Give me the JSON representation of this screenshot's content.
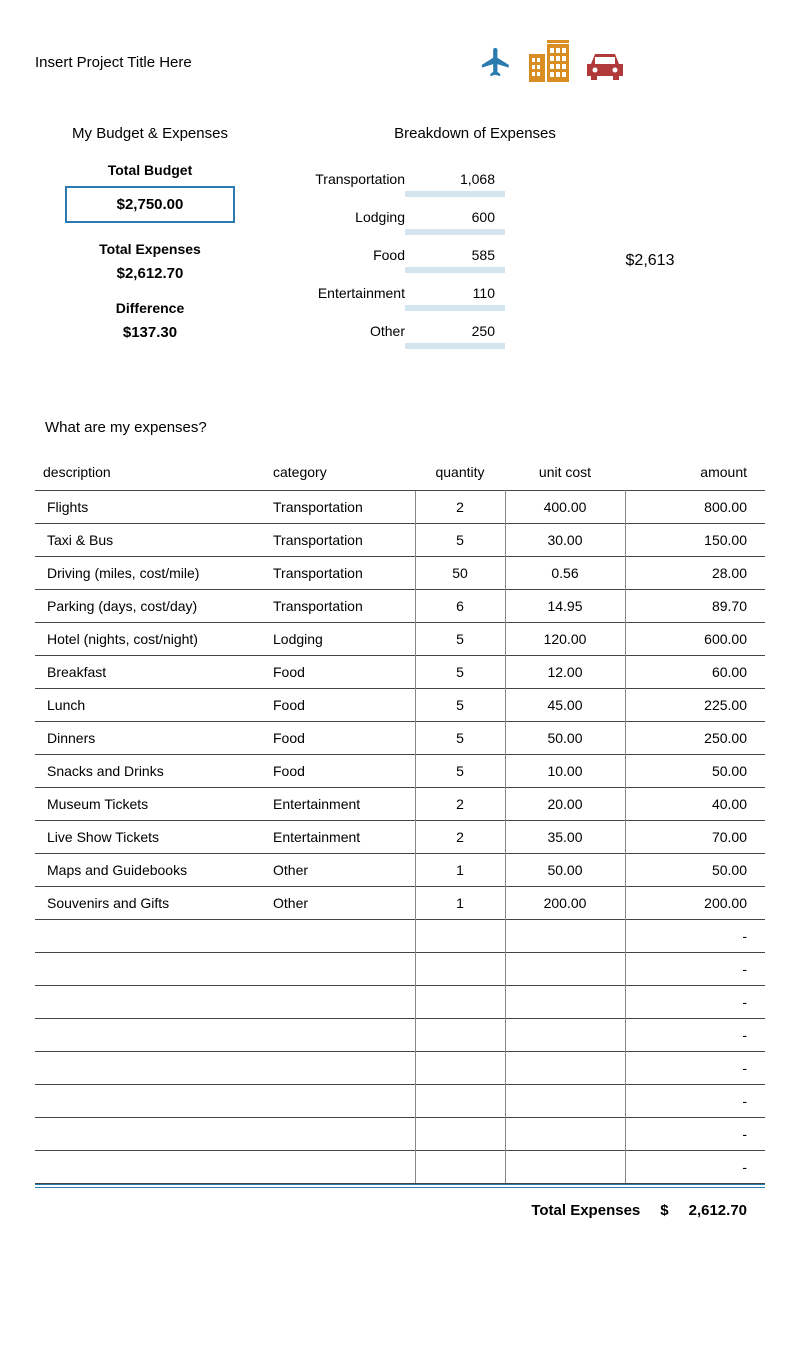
{
  "header": {
    "project_title": "Insert Project Title Here",
    "section_budget": "My Budget & Expenses",
    "section_breakdown": "Breakdown of Expenses"
  },
  "icons": {
    "plane_color": "#2b7ab0",
    "building_color": "#d98e24",
    "car_color": "#b03a3a"
  },
  "budget": {
    "total_budget_label": "Total Budget",
    "total_budget_value": "$2,750.00",
    "total_expenses_label": "Total Expenses",
    "total_expenses_value": "$2,612.70",
    "difference_label": "Difference",
    "difference_value": "$137.30"
  },
  "breakdown": {
    "bar_color": "#d5e5ef",
    "max_value": 1068,
    "items": [
      {
        "label": "Transportation",
        "value": "1,068",
        "num": 1068
      },
      {
        "label": "Lodging",
        "value": "600",
        "num": 600
      },
      {
        "label": "Food",
        "value": "585",
        "num": 585
      },
      {
        "label": "Entertainment",
        "value": "110",
        "num": 110
      },
      {
        "label": "Other",
        "value": "250",
        "num": 250
      }
    ],
    "total": "$2,613"
  },
  "expenses": {
    "question": "What are my expenses?",
    "columns": {
      "description": "description",
      "category": "category",
      "quantity": "quantity",
      "unit_cost": "unit cost",
      "amount": "amount"
    },
    "rows": [
      {
        "description": "Flights",
        "category": "Transportation",
        "quantity": "2",
        "unit_cost": "400.00",
        "amount": "800.00"
      },
      {
        "description": "Taxi & Bus",
        "category": "Transportation",
        "quantity": "5",
        "unit_cost": "30.00",
        "amount": "150.00"
      },
      {
        "description": "Driving (miles, cost/mile)",
        "category": "Transportation",
        "quantity": "50",
        "unit_cost": "0.56",
        "amount": "28.00"
      },
      {
        "description": "Parking (days, cost/day)",
        "category": "Transportation",
        "quantity": "6",
        "unit_cost": "14.95",
        "amount": "89.70"
      },
      {
        "description": "Hotel (nights, cost/night)",
        "category": "Lodging",
        "quantity": "5",
        "unit_cost": "120.00",
        "amount": "600.00"
      },
      {
        "description": "Breakfast",
        "category": "Food",
        "quantity": "5",
        "unit_cost": "12.00",
        "amount": "60.00"
      },
      {
        "description": "Lunch",
        "category": "Food",
        "quantity": "5",
        "unit_cost": "45.00",
        "amount": "225.00"
      },
      {
        "description": "Dinners",
        "category": "Food",
        "quantity": "5",
        "unit_cost": "50.00",
        "amount": "250.00"
      },
      {
        "description": "Snacks and Drinks",
        "category": "Food",
        "quantity": "5",
        "unit_cost": "10.00",
        "amount": "50.00"
      },
      {
        "description": "Museum Tickets",
        "category": "Entertainment",
        "quantity": "2",
        "unit_cost": "20.00",
        "amount": "40.00"
      },
      {
        "description": "Live Show Tickets",
        "category": "Entertainment",
        "quantity": "2",
        "unit_cost": "35.00",
        "amount": "70.00"
      },
      {
        "description": "Maps and Guidebooks",
        "category": "Other",
        "quantity": "1",
        "unit_cost": "50.00",
        "amount": "50.00"
      },
      {
        "description": "Souvenirs and Gifts",
        "category": "Other",
        "quantity": "1",
        "unit_cost": "200.00",
        "amount": "200.00"
      },
      {
        "description": "",
        "category": "",
        "quantity": "",
        "unit_cost": "",
        "amount": "-"
      },
      {
        "description": "",
        "category": "",
        "quantity": "",
        "unit_cost": "",
        "amount": "-"
      },
      {
        "description": "",
        "category": "",
        "quantity": "",
        "unit_cost": "",
        "amount": "-"
      },
      {
        "description": "",
        "category": "",
        "quantity": "",
        "unit_cost": "",
        "amount": "-"
      },
      {
        "description": "",
        "category": "",
        "quantity": "",
        "unit_cost": "",
        "amount": "-"
      },
      {
        "description": "",
        "category": "",
        "quantity": "",
        "unit_cost": "",
        "amount": "-"
      },
      {
        "description": "",
        "category": "",
        "quantity": "",
        "unit_cost": "",
        "amount": "-"
      },
      {
        "description": "",
        "category": "",
        "quantity": "",
        "unit_cost": "",
        "amount": "-"
      }
    ],
    "footer": {
      "label": "Total Expenses",
      "currency": "$",
      "value": "2,612.70"
    }
  }
}
